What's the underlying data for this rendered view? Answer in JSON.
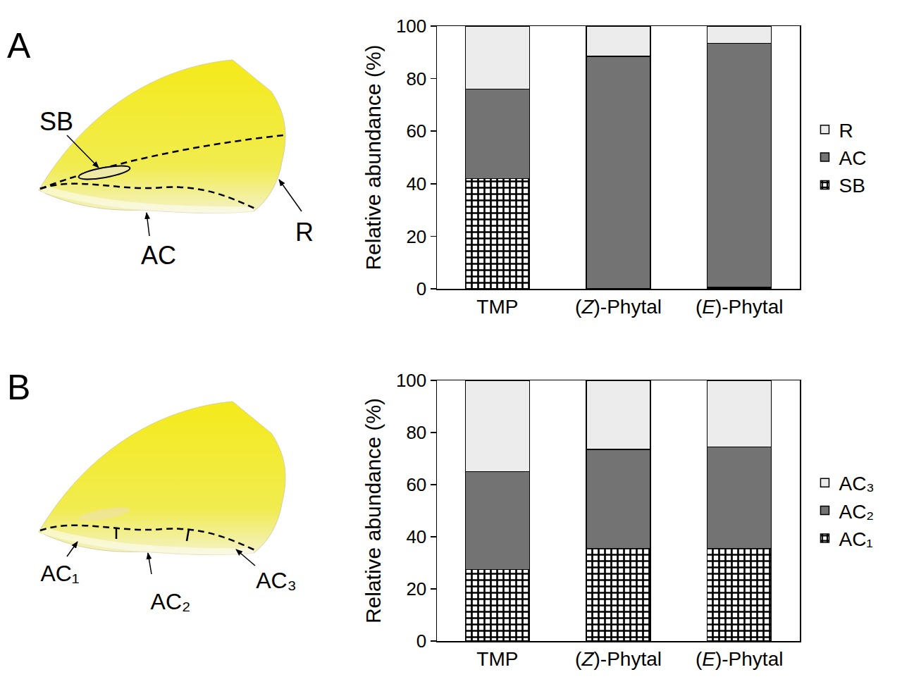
{
  "chart_data": [
    {
      "type": "bar",
      "panel_label": "A",
      "wing_labels": [
        "SB",
        "AC",
        "R"
      ],
      "categories": [
        "TMP",
        "(Z)-Phytal",
        "(E)-Phytal"
      ],
      "y_label": "Relative abundance (%)",
      "stacked": true,
      "legend": "right",
      "ylim": [
        0,
        100
      ],
      "yticks": [
        0,
        20,
        40,
        60,
        80,
        100
      ],
      "series": [
        {
          "name": "SB",
          "color": "#000000",
          "marker": "checkered",
          "values": [
            42,
            0,
            0.5
          ]
        },
        {
          "name": "AC",
          "color": "#737373",
          "values": [
            34,
            88.5,
            93
          ]
        },
        {
          "name": "R",
          "color": "#ececec",
          "values": [
            24,
            11.5,
            6.5
          ]
        }
      ]
    },
    {
      "type": "bar",
      "panel_label": "B",
      "wing_labels": [
        "AC₁",
        "AC₂",
        "AC₃"
      ],
      "categories": [
        "TMP",
        "(Z)-Phytal",
        "(E)-Phytal"
      ],
      "y_label": "Relative abundance (%)",
      "stacked": true,
      "legend": "right",
      "ylim": [
        0,
        100
      ],
      "yticks": [
        0,
        20,
        40,
        60,
        80,
        100
      ],
      "series": [
        {
          "name": "AC₁",
          "color": "#000000",
          "marker": "checkered",
          "values": [
            27.5,
            35.5,
            35.5
          ]
        },
        {
          "name": "AC₂",
          "color": "#737373",
          "values": [
            37.5,
            38,
            39
          ]
        },
        {
          "name": "AC₃",
          "color": "#ececec",
          "values": [
            35,
            26.5,
            25.5
          ]
        }
      ]
    }
  ]
}
